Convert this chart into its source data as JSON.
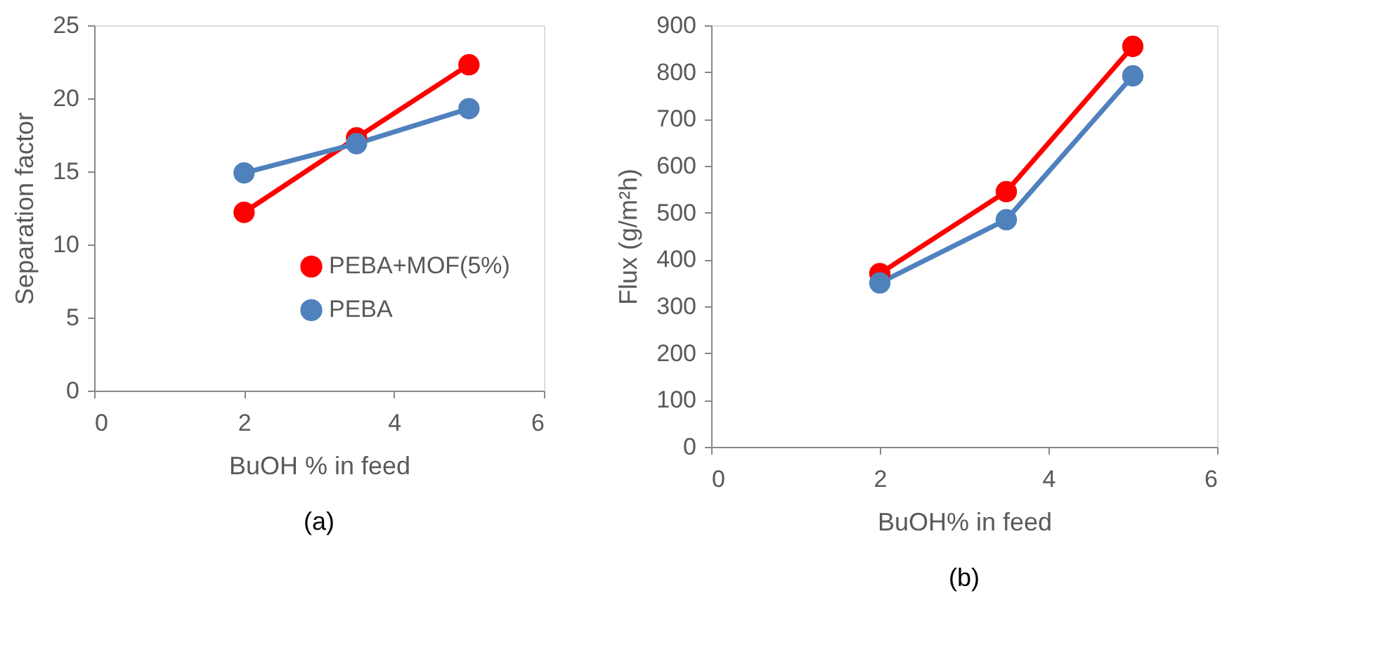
{
  "chart_data": [
    {
      "type": "line",
      "xlabel": "BuOH % in feed",
      "ylabel": "Separation factor",
      "x": [
        2,
        3.5,
        5
      ],
      "xlim": [
        0,
        6
      ],
      "xticks": [
        0,
        2,
        4,
        6
      ],
      "ylim": [
        0,
        25
      ],
      "yticks": [
        0,
        5,
        10,
        15,
        20,
        25
      ],
      "grid": false,
      "legend": "bottom right",
      "marker": "circle",
      "line_style": "solid",
      "annotations": [
        "(a)"
      ],
      "series": [
        {
          "name": "PEBA+MOF(5%)",
          "color": "#ff0000",
          "values": [
            12.2,
            17.3,
            22.3
          ]
        },
        {
          "name": "PEBA",
          "color": "#4f81bd",
          "values": [
            14.9,
            16.9,
            19.3
          ]
        }
      ]
    },
    {
      "type": "line",
      "xlabel": "BuOH% in feed",
      "ylabel": "Flux (g/m²h)",
      "x": [
        2,
        3.5,
        5
      ],
      "xlim": [
        0,
        6
      ],
      "xticks": [
        0,
        2,
        4,
        6
      ],
      "ylim": [
        0,
        900
      ],
      "yticks": [
        0,
        100,
        200,
        300,
        400,
        500,
        600,
        700,
        800,
        900
      ],
      "grid": false,
      "legend": "bottom right",
      "marker": "circle",
      "line_style": "solid",
      "annotations": [
        "(b)"
      ],
      "series": [
        {
          "name": "PEBA+MOF(5%)",
          "color": "#ff0000",
          "values": [
            370,
            545,
            855
          ]
        },
        {
          "name": "PEBA",
          "color": "#4f81bd",
          "values": [
            350,
            485,
            792
          ]
        }
      ]
    }
  ]
}
